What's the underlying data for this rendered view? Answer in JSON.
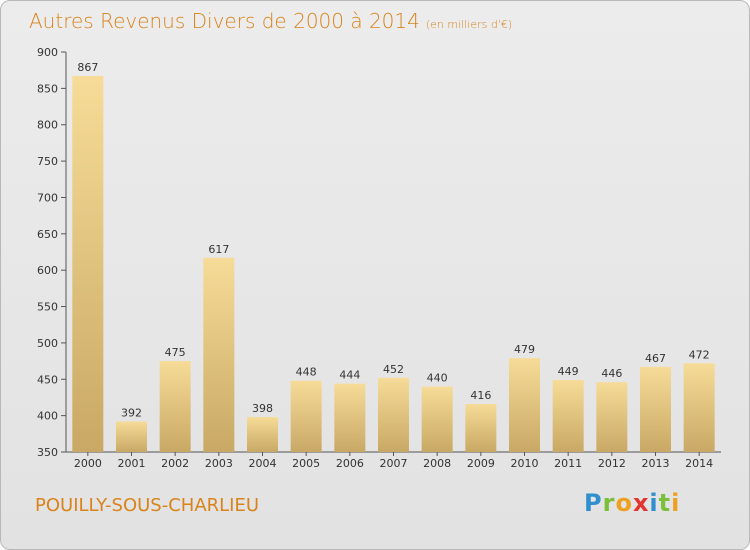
{
  "title": "Autres Revenus Divers de 2000 à 2014",
  "unit": "(en milliers d'€)",
  "place": "POUILLY-SOUS-CHARLIEU",
  "logo": {
    "letters": [
      "P",
      "r",
      "o",
      "x",
      "i",
      "t",
      "i"
    ]
  },
  "chart_data": {
    "type": "bar",
    "categories": [
      "2000",
      "2001",
      "2002",
      "2003",
      "2004",
      "2005",
      "2006",
      "2007",
      "2008",
      "2009",
      "2010",
      "2011",
      "2012",
      "2013",
      "2014"
    ],
    "values": [
      867,
      392,
      475,
      617,
      398,
      448,
      444,
      452,
      440,
      416,
      479,
      449,
      446,
      467,
      472
    ],
    "ylim": [
      350,
      900
    ],
    "yticks": [
      350,
      400,
      450,
      500,
      550,
      600,
      650,
      700,
      750,
      800,
      850,
      900
    ],
    "grid": false,
    "colors": {
      "bar_light": "#f6dc98",
      "bar_dark": "#c9a865",
      "text": "#333333",
      "accent": "#d9831a"
    }
  }
}
